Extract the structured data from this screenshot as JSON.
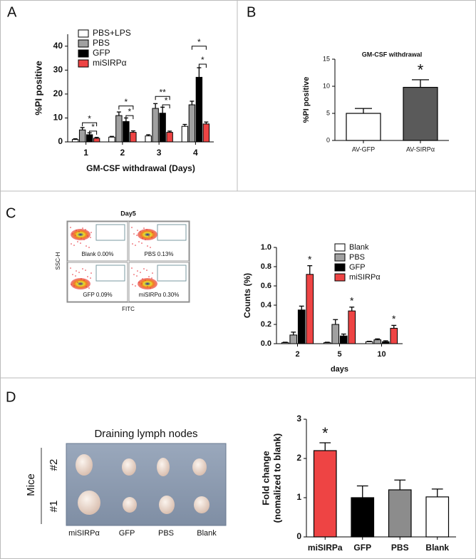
{
  "panel_labels": [
    "A",
    "B",
    "C",
    "D"
  ],
  "chart_data": [
    {
      "type": "bar",
      "categories": [
        "1",
        "2",
        "3",
        "4"
      ],
      "x_label": "GM-CSF withdrawal (Days)",
      "y_label": "%PI positive",
      "ylim": [
        0,
        45
      ],
      "yticks": [
        0,
        10,
        20,
        30,
        40
      ],
      "legend": "upper left",
      "series": [
        {
          "name": "PBS+LPS",
          "color": "#ffffff",
          "values": [
            1,
            2,
            2.5,
            6.5
          ],
          "errors": [
            0.3,
            0.3,
            0.5,
            0.8
          ]
        },
        {
          "name": "PBS",
          "color": "#a0a0a0",
          "values": [
            5,
            11,
            14,
            15.5
          ],
          "errors": [
            1,
            1.5,
            2,
            1.5
          ]
        },
        {
          "name": "GFP",
          "color": "#000000",
          "values": [
            3,
            8.5,
            12,
            27
          ],
          "errors": [
            0.8,
            1.5,
            2.5,
            4
          ]
        },
        {
          "name": "miSIRPα",
          "color": "#ee4444",
          "values": [
            1.5,
            4,
            4,
            7.5
          ],
          "errors": [
            0.4,
            0.6,
            0.5,
            0.8
          ]
        }
      ],
      "annotations": [
        "*",
        "*",
        "*",
        "*",
        "**",
        "*",
        "*",
        "*"
      ]
    },
    {
      "type": "bar",
      "title": "GM-CSF withdrawal",
      "categories": [
        "AV-GFP",
        "AV-SIRPα"
      ],
      "y_label": "%PI positive",
      "values": [
        5,
        9.8
      ],
      "errors": [
        0.9,
        1.4
      ],
      "colors": [
        "#ffffff",
        "#5a5a5a"
      ],
      "ylim": [
        0,
        15
      ],
      "yticks": [
        0,
        5,
        10,
        15
      ],
      "annotations": [
        "*"
      ]
    },
    {
      "type": "bar",
      "categories": [
        "2",
        "5",
        "10"
      ],
      "x_label": "days",
      "y_label": "Counts (%)",
      "ylim": [
        0,
        1
      ],
      "yticks": [
        {
          "value": 0,
          "label": "0.0"
        },
        0.2,
        0.4,
        0.6,
        0.8,
        {
          "value": 1,
          "label": "1.0"
        }
      ],
      "legend": "upper right",
      "series": [
        {
          "name": "Blank",
          "color": "#ffffff",
          "values": [
            0.01,
            0.01,
            0.02
          ],
          "errors": [
            0.005,
            0.005,
            0.005
          ]
        },
        {
          "name": "PBS",
          "color": "#a0a0a0",
          "values": [
            0.09,
            0.2,
            0.04
          ],
          "errors": [
            0.03,
            0.05,
            0.01
          ]
        },
        {
          "name": "GFP",
          "color": "#000000",
          "values": [
            0.35,
            0.08,
            0.02
          ],
          "errors": [
            0.04,
            0.02,
            0.01
          ]
        },
        {
          "name": "miSIRPα",
          "color": "#ee4444",
          "values": [
            0.72,
            0.34,
            0.16
          ],
          "errors": [
            0.09,
            0.04,
            0.03
          ]
        }
      ],
      "annotations": [
        "*",
        "*",
        "*"
      ]
    },
    {
      "type": "bar",
      "categories": [
        "miSIRPa",
        "GFP",
        "PBS",
        "Blank"
      ],
      "y_label": [
        "Fold change",
        "(nomalized to blank)"
      ],
      "values": [
        2.2,
        1.0,
        1.2,
        1.02
      ],
      "errors": [
        0.2,
        0.3,
        0.25,
        0.2
      ],
      "colors": [
        "#ee4444",
        "#000000",
        "#8c8c8c",
        "#ffffff"
      ],
      "ylim": [
        0,
        3
      ],
      "yticks": [
        0,
        1,
        2,
        3
      ],
      "annotations": [
        "*"
      ]
    }
  ],
  "flow_cytometry": {
    "title": "Day5",
    "panels": [
      "Blank 0.00%",
      "PBS 0.13%",
      "GFP 0.09%",
      "miSIRPα 0.30%"
    ],
    "y_label": "SSC-H",
    "x_label": "FITC"
  },
  "lymph_nodes": {
    "title": "Draining lymph nodes",
    "group_label": "Mice",
    "rows": [
      "#2",
      "#1"
    ],
    "columns": [
      "miSIRPα",
      "GFP",
      "PBS",
      "Blank"
    ]
  }
}
